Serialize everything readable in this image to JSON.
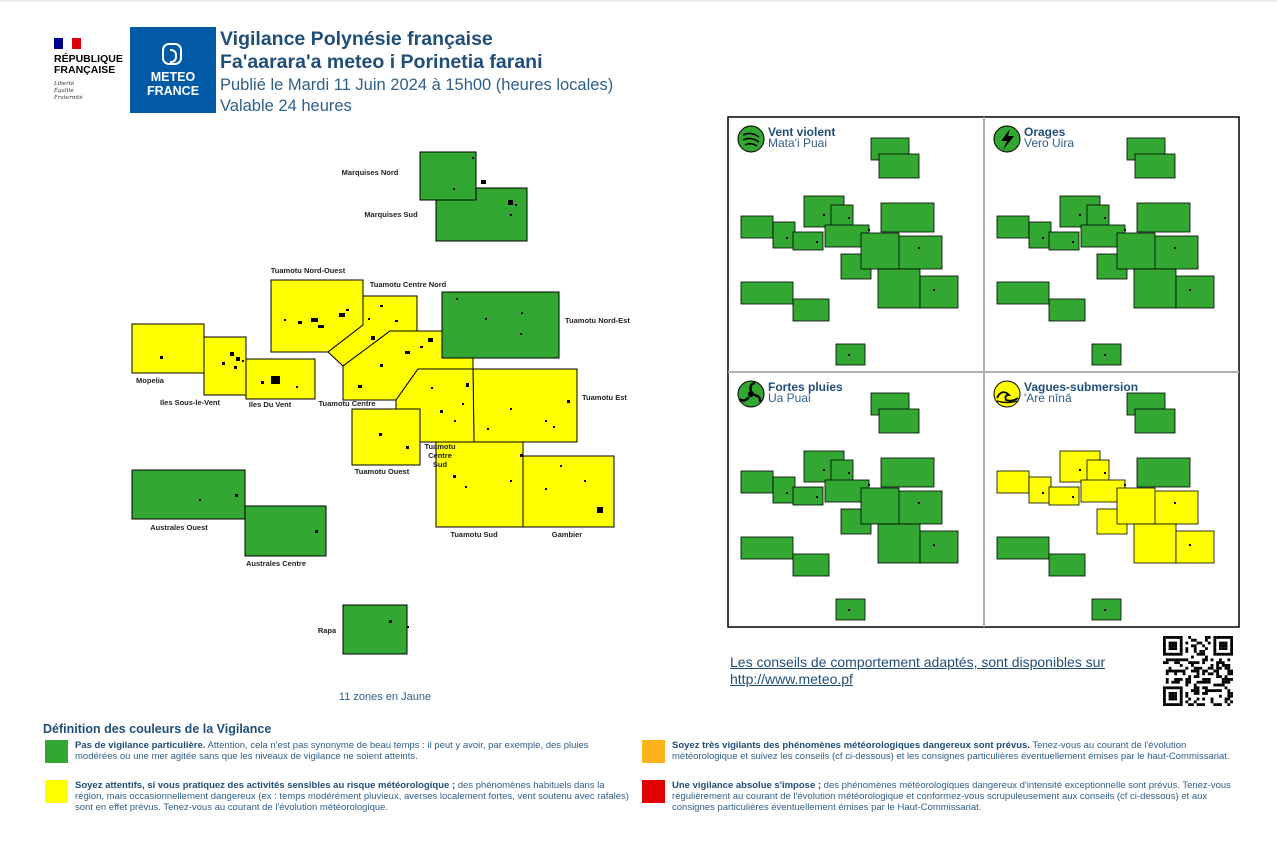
{
  "header": {
    "republic": "RÉPUBLIQUE\nFRANÇAISE",
    "motto": "Liberté\nÉgalité\nFraternité",
    "meteo_logo": "METEO\nFRANCE",
    "title_fr": "Vigilance Polynésie française",
    "title_tah": "Fa'aarara'a meteo i Porinetia farani",
    "published": "Publié le Mardi 11 Juin 2024 à 15h00 (heures locales)",
    "validity": "Valable 24 heures"
  },
  "colors": {
    "green": "#32a832",
    "yellow": "#ffff00",
    "orange": "#ffb31a",
    "red": "#e10000",
    "title_blue": "#1f4e79"
  },
  "map": {
    "zones": [
      {
        "key": "marquises_nord",
        "name": "Marquises Nord",
        "level": "green"
      },
      {
        "key": "marquises_sud",
        "name": "Marquises Sud",
        "level": "green"
      },
      {
        "key": "tuamotu_nord_ouest",
        "name": "Tuamotu Nord-Ouest",
        "level": "yellow"
      },
      {
        "key": "tuamotu_centre_nord",
        "name": "Tuamotu Centre Nord",
        "level": "yellow"
      },
      {
        "key": "tuamotu_nord_est",
        "name": "Tuamotu Nord-Est",
        "level": "green"
      },
      {
        "key": "mopelia",
        "name": "Mopelia",
        "level": "yellow"
      },
      {
        "key": "iles_sous_le_vent",
        "name": "Iles Sous-le-Vent",
        "level": "yellow"
      },
      {
        "key": "iles_du_vent",
        "name": "Iles Du Vent",
        "level": "yellow"
      },
      {
        "key": "tuamotu_centre",
        "name": "Tuamotu Centre",
        "level": "yellow"
      },
      {
        "key": "tuamotu_est",
        "name": "Tuamotu Est",
        "level": "yellow"
      },
      {
        "key": "tuamotu_ouest",
        "name": "Tuamotu Ouest",
        "level": "yellow"
      },
      {
        "key": "tuamotu_centre_sud",
        "name": "Tuamotu\nCentre\nSud",
        "level": "yellow"
      },
      {
        "key": "tuamotu_sud",
        "name": "Tuamotu Sud",
        "level": "yellow"
      },
      {
        "key": "gambier",
        "name": "Gambier",
        "level": "yellow"
      },
      {
        "key": "australes_ouest",
        "name": "Australes Ouest",
        "level": "green"
      },
      {
        "key": "australes_centre",
        "name": "Australes Centre",
        "level": "green"
      },
      {
        "key": "rapa",
        "name": "Rapa",
        "level": "green"
      }
    ],
    "zone_count": "11 zones en Jaune"
  },
  "phenomena": [
    {
      "key": "vent",
      "title": "Vent violent",
      "subtitle": "Mata'i Puai",
      "icon": "wind-icon",
      "icon_level": "green",
      "yellow_zones": []
    },
    {
      "key": "orages",
      "title": "Orages",
      "subtitle": "Vero Uira",
      "icon": "thunderstorm-icon",
      "icon_level": "green",
      "yellow_zones": []
    },
    {
      "key": "pluies",
      "title": "Fortes pluies",
      "subtitle": "Ua Puai",
      "icon": "heavy-rain-icon",
      "icon_level": "green",
      "yellow_zones": []
    },
    {
      "key": "vagues",
      "title": "Vagues-submersion",
      "subtitle": "'Are nīnā",
      "icon": "waves-icon",
      "icon_level": "yellow",
      "yellow_zones": [
        "tuamotu_nord_ouest",
        "tuamotu_centre_nord",
        "mopelia",
        "iles_sous_le_vent",
        "iles_du_vent",
        "tuamotu_centre",
        "tuamotu_est",
        "tuamotu_ouest",
        "tuamotu_centre_sud",
        "tuamotu_sud",
        "gambier"
      ]
    }
  ],
  "advice": {
    "text": "Les conseils de comportement adaptés, sont disponibles sur",
    "url": "http://www.meteo.pf"
  },
  "legend": {
    "title": "Définition des couleurs de la Vigilance",
    "items": [
      {
        "level": "green",
        "bold": "Pas de vigilance particulière.",
        "text": " Attention, cela n'est pas synonyme de beau temps : il peut y avoir, par exemple, des pluies modérées ou une mer agitée sans que les niveaux de vigilance ne soient atteints."
      },
      {
        "level": "yellow",
        "bold": "Soyez attentifs, si vous pratiquez des activités sensibles au risque météorologique ;",
        "text": " des phénomènes habituels dans la région, mais occasionnellement dangereux (ex : temps modérément pluvieux, averses localement fortes, vent soutenu avec rafales) sont en effet prévus. Tenez-vous au courant de l'évolution météorologique."
      },
      {
        "level": "orange",
        "bold": "Soyez très vigilants des phénomènes météorologiques dangereux sont prévus.",
        "text": " Tenez-vous au courant de l'évolution météorologique et suivez les conseils (cf ci-dessous) et les consignes particulières éventuellement émises par le haut-Commissariat."
      },
      {
        "level": "red",
        "bold": "Une vigilance absolue s'impose ;",
        "text": " des phénomènes météorologiques dangereux d'intensité exceptionnelle sont prévus. Tenez-vous régulièrement au courant de l'évolution météorologique et conformez-vous scrupuleusement aux conseils (cf ci-dessous) et aux consignes particulières éventuellement émises par le Haut-Commissariat."
      }
    ]
  }
}
